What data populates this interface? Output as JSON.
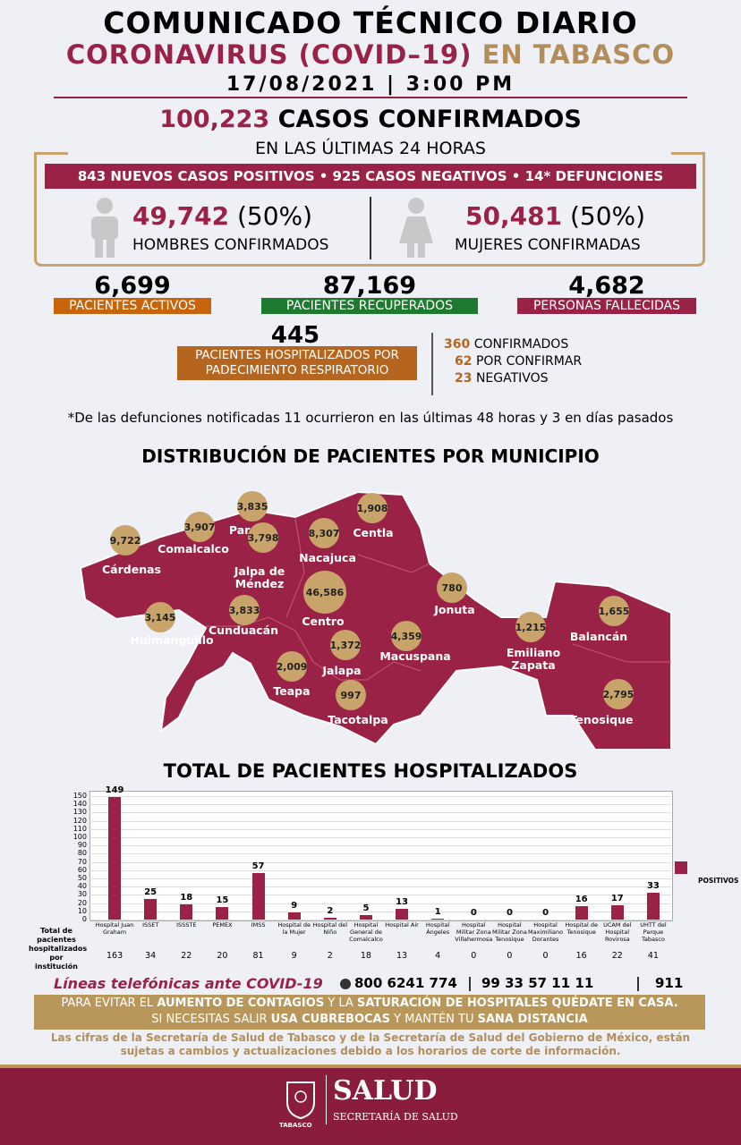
{
  "header": {
    "title": "COMUNICADO TÉCNICO DIARIO",
    "subtitle_main": "CORONAVIRUS (COVID–19)",
    "subtitle_place": "EN TABASCO",
    "datetime": "17/08/2021 | 3:00 PM"
  },
  "confirmed": {
    "total": "100,223",
    "label": "CASOS CONFIRMADOS",
    "period": "EN LAS ÚLTIMAS 24 HORAS",
    "daily": "843 NUEVOS CASOS POSITIVOS • 925 CASOS NEGATIVOS • 14* DEFUNCIONES",
    "men": {
      "count": "49,742",
      "share": "(50%)",
      "label": "HOMBRES CONFIRMADOS"
    },
    "women": {
      "count": "50,481",
      "share": "(50%)",
      "label": "MUJERES CONFIRMADAS"
    }
  },
  "status": [
    {
      "value": "6,699",
      "label": "PACIENTES ACTIVOS"
    },
    {
      "value": "87,169",
      "label": "PACIENTES RECUPERADOS"
    },
    {
      "value": "4,682",
      "label": "PERSONAS FALLECIDAS"
    }
  ],
  "hospitalized": {
    "value": "445",
    "label": "PACIENTES HOSPITALIZADOS POR PADECIMIENTO RESPIRATORIO",
    "breakdown": [
      {
        "value": "360",
        "label": "CONFIRMADOS"
      },
      {
        "value": "62",
        "label": "POR CONFIRMAR"
      },
      {
        "value": "23",
        "label": "NEGATIVOS"
      }
    ]
  },
  "footnote": "*De las defunciones notificadas 11 ocurrieron en las últimas 48 horas y 3 en días pasados",
  "map": {
    "title": "DISTRIBUCIÓN DE PACIENTES POR MUNICIPIO",
    "municipalities": [
      {
        "name": "Cárdenas",
        "value": "9,722"
      },
      {
        "name": "Comalcalco",
        "value": "3,907"
      },
      {
        "name": "Paraíso",
        "value": "3,835"
      },
      {
        "name": "Jalpa de Méndez",
        "value": "3,798"
      },
      {
        "name": "Nacajuca",
        "value": "8,307"
      },
      {
        "name": "Centla",
        "value": "1,908"
      },
      {
        "name": "Centro",
        "value": "46,586"
      },
      {
        "name": "Huimanguillo",
        "value": "3,145"
      },
      {
        "name": "Cunduacán",
        "value": "3,833"
      },
      {
        "name": "Jonuta",
        "value": "780"
      },
      {
        "name": "Macuspana",
        "value": "4,359"
      },
      {
        "name": "Jalapa",
        "value": "1,372"
      },
      {
        "name": "Teapa",
        "value": "2,009"
      },
      {
        "name": "Tacotalpa",
        "value": "997"
      },
      {
        "name": "Emiliano Zapata",
        "value": "1,215"
      },
      {
        "name": "Balancán",
        "value": "1,655"
      },
      {
        "name": "Tenosique",
        "value": "2,795"
      }
    ]
  },
  "chart_data": {
    "type": "bar",
    "title": "TOTAL DE PACIENTES HOSPITALIZADOS",
    "categories": [
      "Hospital Juan Graham",
      "ISSET",
      "ISSSTE",
      "PEMEX",
      "IMSS",
      "Hospital de la Mujer",
      "Hospital del Niño",
      "Hospital General de Comalcalco",
      "Hospital Air",
      "Hospital Ángeles",
      "Hospital Militar Zona Villahermosa",
      "Hospital Militar Zona Tenosique",
      "Hospital Maximiliano Dorantes",
      "Hospital de Tenosique",
      "UCAM del Hospital Rovirosa",
      "UHTT del Parque Tabasco"
    ],
    "series": [
      {
        "name": "POSITIVOS",
        "color": "#9b2247",
        "values": [
          149,
          25,
          18,
          15,
          57,
          9,
          2,
          5,
          13,
          1,
          0,
          0,
          0,
          16,
          17,
          33
        ]
      }
    ],
    "ylim": [
      0,
      150
    ],
    "yticks": [
      0,
      10,
      20,
      30,
      40,
      50,
      60,
      70,
      80,
      90,
      100,
      110,
      120,
      130,
      140,
      150
    ],
    "grid": true,
    "legend": "right",
    "totals_label": "Total de pacientes hospitalizados por institución",
    "totals": [
      163,
      34,
      22,
      20,
      81,
      9,
      2,
      18,
      13,
      4,
      0,
      0,
      0,
      16,
      22,
      41
    ]
  },
  "contact": {
    "label": "Líneas telefónicas ante COVID-19",
    "numbers": [
      "800 6241 774",
      "99 33 57 11 11",
      "911"
    ]
  },
  "banner": {
    "lines": [
      [
        "PARA EVITAR EL ",
        "AUMENTO DE CONTAGIOS",
        " Y LA ",
        "SATURACIÓN DE HOSPITALES QUÉDATE EN CASA."
      ],
      [
        "SI NECESITAS SALIR ",
        "USA CUBREBOCAS",
        " Y MANTÉN TU ",
        "SANA DISTANCIA"
      ]
    ]
  },
  "disclaimer": "Las cifras de la Secretaría de Salud de Tabasco y de la Secretaría de Salud del Gobierno de México, están sujetas a cambios y actualizaciones debido a los horarios de corte de información.",
  "footer": {
    "brand": "SALUD",
    "org": "SECRETARÍA DE SALUD",
    "state": "TABASCO"
  }
}
